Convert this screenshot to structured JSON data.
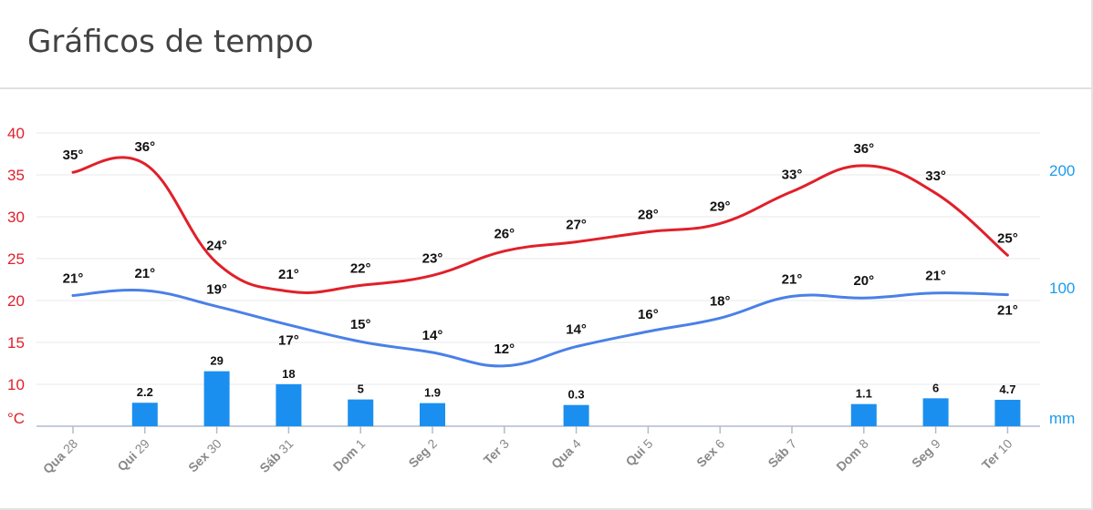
{
  "header": {
    "title": "Gráficos de tempo"
  },
  "chart_data": {
    "type": "line",
    "categories": [
      {
        "dow": "Qua",
        "day": "28"
      },
      {
        "dow": "Qui",
        "day": "29"
      },
      {
        "dow": "Sex",
        "day": "30"
      },
      {
        "dow": "Sáb",
        "day": "31"
      },
      {
        "dow": "Dom",
        "day": "1"
      },
      {
        "dow": "Seg",
        "day": "2"
      },
      {
        "dow": "Ter",
        "day": "3"
      },
      {
        "dow": "Qua",
        "day": "4"
      },
      {
        "dow": "Qui",
        "day": "5"
      },
      {
        "dow": "Sex",
        "day": "6"
      },
      {
        "dow": "Sáb",
        "day": "7"
      },
      {
        "dow": "Dom",
        "day": "8"
      },
      {
        "dow": "Seg",
        "day": "9"
      },
      {
        "dow": "Ter",
        "day": "10"
      }
    ],
    "series": [
      {
        "type": "line",
        "axis": "left",
        "color": "#e0202a",
        "values": [
          35.3,
          36.3,
          24.5,
          21.1,
          21.8,
          23,
          25.9,
          27,
          28.2,
          29.2,
          33,
          36.1,
          32.8,
          25.4
        ],
        "labels": [
          "35°",
          "36°",
          "24°",
          "21°",
          "22°",
          "23°",
          "26°",
          "27°",
          "28°",
          "29°",
          "33°",
          "36°",
          "33°",
          "25°"
        ]
      },
      {
        "type": "line",
        "axis": "left",
        "color": "#4a80e8",
        "values": [
          20.6,
          21.2,
          19.3,
          17.1,
          15.1,
          13.8,
          12.2,
          14.5,
          16.3,
          17.9,
          20.5,
          20.3,
          20.9,
          20.7
        ],
        "labels": [
          "21°",
          "21°",
          "19°",
          "17°",
          "15°",
          "14°",
          "12°",
          "14°",
          "16°",
          "18°",
          "21°",
          "20°",
          "21°",
          "21°"
        ]
      },
      {
        "type": "bar",
        "axis": "right",
        "color": "#1a8ff0",
        "values": [
          0,
          2.2,
          29,
          18,
          5,
          1.9,
          0,
          0.3,
          0,
          0,
          0,
          1.1,
          6,
          4.7
        ],
        "labels": [
          "",
          "2.2",
          "29",
          "18",
          "5",
          "1.9",
          "",
          "0.3",
          "",
          "",
          "",
          "1.1",
          "6",
          "4.7"
        ]
      }
    ],
    "y_left": {
      "ticks": [
        "40",
        "35",
        "30",
        "25",
        "20",
        "15",
        "10"
      ],
      "unit": "°C",
      "ylim": [
        5,
        40
      ],
      "color": "#e0202a"
    },
    "y_right": {
      "ticks": [
        "200",
        "100"
      ],
      "unit": "mm",
      "ylim": [
        -10,
        220
      ],
      "color": "#1a9bf0"
    },
    "grid": true
  }
}
